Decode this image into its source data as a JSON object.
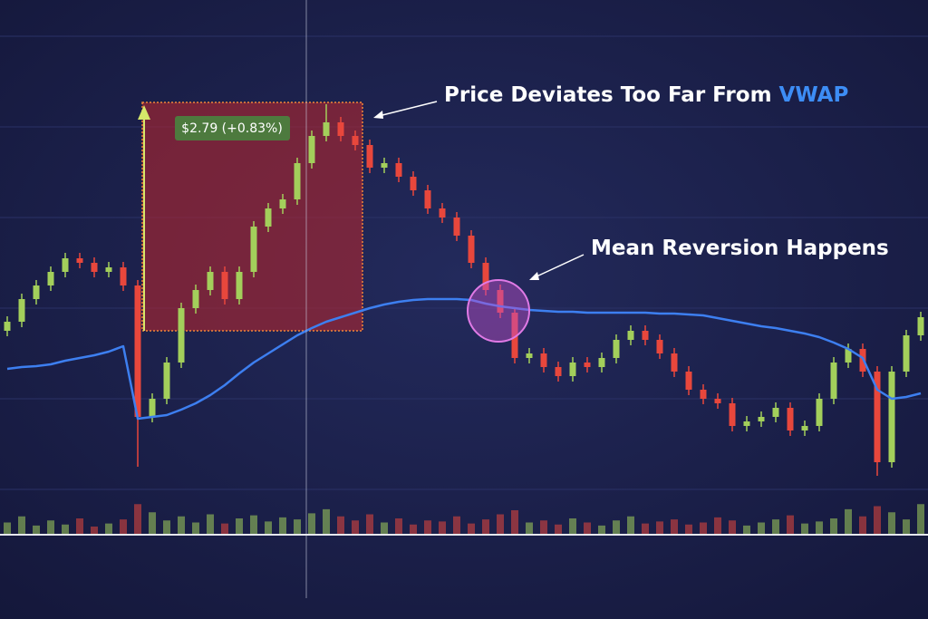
{
  "chart_data": {
    "type": "candlestick",
    "ylim": [
      334.55,
      340.0
    ],
    "volume_ylim": [
      0,
      40
    ],
    "up_color": "#a3cf5b",
    "down_color": "#e8473c",
    "vwap_color": "#3d7ff0",
    "open": [
      336.35,
      336.45,
      336.7,
      336.85,
      337.0,
      337.15,
      337.1,
      337.0,
      337.05,
      336.85,
      335.4,
      335.6,
      336.0,
      336.6,
      336.8,
      337.0,
      336.7,
      337.0,
      337.5,
      337.7,
      337.8,
      338.2,
      338.5,
      338.65,
      338.5,
      338.4,
      338.15,
      338.2,
      338.05,
      337.9,
      337.7,
      337.6,
      337.4,
      337.1,
      336.8,
      336.55,
      336.05,
      336.1,
      335.95,
      335.85,
      336.0,
      335.95,
      336.05,
      336.25,
      336.35,
      336.25,
      336.1,
      335.9,
      335.7,
      335.6,
      335.55,
      335.3,
      335.35,
      335.4,
      335.5,
      335.25,
      335.3,
      335.6,
      336.0,
      336.15,
      335.9,
      334.9,
      335.9,
      336.3
    ],
    "high": [
      336.51,
      336.76,
      336.91,
      337.06,
      337.21,
      337.21,
      337.16,
      337.11,
      337.11,
      336.91,
      335.66,
      336.06,
      336.66,
      336.86,
      337.06,
      337.06,
      337.06,
      337.56,
      337.76,
      337.86,
      338.26,
      338.56,
      338.85,
      338.71,
      338.56,
      338.46,
      338.26,
      338.26,
      338.11,
      337.96,
      337.76,
      337.66,
      337.46,
      337.16,
      336.86,
      336.61,
      336.16,
      336.16,
      336.01,
      336.06,
      336.06,
      336.11,
      336.31,
      336.41,
      336.41,
      336.31,
      336.16,
      335.96,
      335.76,
      335.66,
      335.61,
      335.41,
      335.46,
      335.56,
      335.56,
      335.36,
      335.66,
      336.06,
      336.21,
      336.21,
      335.96,
      335.96,
      336.36,
      336.56
    ],
    "low": [
      336.29,
      336.39,
      336.64,
      336.79,
      336.94,
      337.04,
      336.94,
      336.94,
      336.79,
      334.85,
      335.34,
      335.54,
      335.94,
      336.54,
      336.74,
      336.64,
      336.64,
      336.94,
      337.44,
      337.64,
      337.74,
      338.14,
      338.44,
      338.44,
      338.34,
      338.09,
      338.09,
      337.99,
      337.84,
      337.64,
      337.54,
      337.34,
      337.04,
      336.74,
      336.49,
      335.99,
      335.99,
      335.89,
      335.79,
      335.79,
      335.89,
      335.89,
      335.99,
      336.19,
      336.19,
      336.04,
      335.84,
      335.64,
      335.54,
      335.49,
      335.24,
      335.24,
      335.29,
      335.34,
      335.19,
      335.19,
      335.24,
      335.54,
      335.94,
      335.84,
      334.75,
      334.84,
      335.84,
      336.24
    ],
    "close": [
      336.45,
      336.7,
      336.85,
      337.0,
      337.15,
      337.1,
      337.0,
      337.05,
      336.85,
      335.4,
      335.6,
      336.0,
      336.6,
      336.8,
      337.0,
      336.7,
      337.0,
      337.5,
      337.7,
      337.8,
      338.2,
      338.5,
      338.65,
      338.5,
      338.4,
      338.15,
      338.2,
      338.05,
      337.9,
      337.7,
      337.6,
      337.4,
      337.1,
      336.8,
      336.55,
      336.05,
      336.1,
      335.95,
      335.85,
      336.0,
      335.95,
      336.05,
      336.25,
      336.35,
      336.25,
      336.1,
      335.9,
      335.7,
      335.6,
      335.55,
      335.3,
      335.35,
      335.4,
      335.5,
      335.25,
      335.3,
      335.6,
      336.0,
      336.15,
      335.9,
      334.9,
      335.9,
      336.3,
      336.5
    ],
    "volume": [
      12,
      18,
      9,
      14,
      10,
      16,
      8,
      11,
      15,
      30,
      22,
      14,
      18,
      12,
      20,
      11,
      16,
      19,
      13,
      17,
      15,
      21,
      25,
      18,
      14,
      20,
      12,
      16,
      10,
      14,
      13,
      18,
      11,
      15,
      20,
      24,
      12,
      14,
      10,
      16,
      12,
      9,
      14,
      18,
      11,
      13,
      15,
      10,
      12,
      17,
      14,
      9,
      12,
      15,
      19,
      11,
      13,
      16,
      25,
      18,
      28,
      22,
      15,
      30
    ],
    "vwap": [
      335.93,
      335.95,
      335.96,
      335.98,
      336.02,
      336.05,
      336.08,
      336.12,
      336.18,
      335.38,
      335.4,
      335.42,
      335.48,
      335.55,
      335.64,
      335.75,
      335.88,
      336.0,
      336.1,
      336.2,
      336.3,
      336.38,
      336.45,
      336.5,
      336.55,
      336.6,
      336.64,
      336.67,
      336.69,
      336.7,
      336.7,
      336.7,
      336.69,
      336.65,
      336.62,
      336.6,
      336.58,
      336.57,
      336.56,
      336.56,
      336.55,
      336.55,
      336.55,
      336.55,
      336.55,
      336.54,
      336.54,
      336.53,
      336.52,
      336.49,
      336.46,
      336.43,
      336.4,
      336.38,
      336.35,
      336.32,
      336.28,
      336.22,
      336.15,
      336.05,
      335.7,
      335.6,
      335.62,
      335.66
    ],
    "annotations": {
      "deviation": "Price Deviates Too Far From",
      "vwap_word": "VWAP",
      "reversion": "Mean Reversion Happens",
      "measure": "$2.79 (+0.83%)"
    }
  }
}
